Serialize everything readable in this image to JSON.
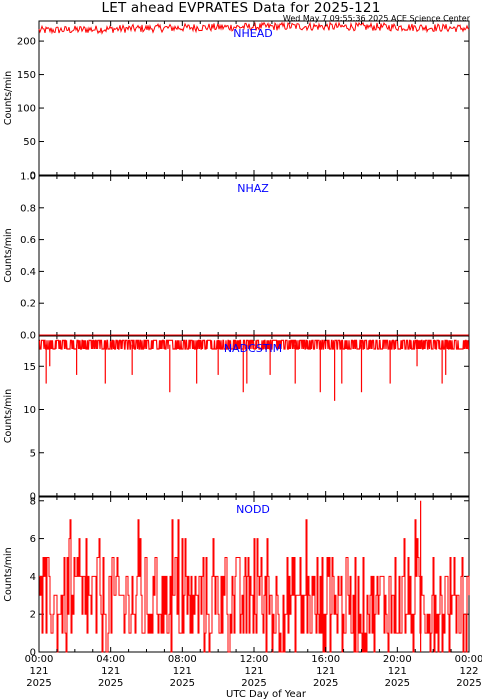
{
  "header": {
    "title": "LET ahead EVPRATES Data for 2025-121",
    "timestamp": "Wed May  7 09:55:36 2025 ACE Science Center"
  },
  "colors": {
    "series": "#ff0000",
    "label": "#0000ff",
    "axes": "#000000"
  },
  "x_axis": {
    "label": "UTC Day of Year",
    "ticks": [
      {
        "time": "00:00",
        "doy": "121",
        "year": "2025"
      },
      {
        "time": "04:00",
        "doy": "121",
        "year": "2025"
      },
      {
        "time": "08:00",
        "doy": "121",
        "year": "2025"
      },
      {
        "time": "12:00",
        "doy": "121",
        "year": "2025"
      },
      {
        "time": "16:00",
        "doy": "121",
        "year": "2025"
      },
      {
        "time": "20:00",
        "doy": "121",
        "year": "2025"
      },
      {
        "time": "00:00",
        "doy": "122",
        "year": "2025"
      }
    ]
  },
  "chart_data": [
    {
      "type": "line",
      "series_label": "NHEAD",
      "ylabel": "Counts/min",
      "ylim": [
        0,
        230
      ],
      "yticks": [
        "0",
        "50",
        "100",
        "150",
        "200"
      ],
      "x_range_hours": [
        0,
        24
      ],
      "baseline": 218,
      "noise": 6,
      "trend": [
        [
          0,
          216
        ],
        [
          8,
          220
        ],
        [
          14,
          222
        ],
        [
          20,
          221
        ],
        [
          24,
          219
        ]
      ]
    },
    {
      "type": "line",
      "series_label": "NHAZ",
      "ylabel": "Counts/min",
      "ylim": [
        0,
        1
      ],
      "yticks": [
        "0.0",
        "0.2",
        "0.4",
        "0.6",
        "0.8",
        "1.0"
      ],
      "x_range_hours": [
        0,
        24
      ],
      "baseline": 0,
      "noise": 0,
      "trend": [
        [
          0,
          0
        ],
        [
          24,
          0
        ]
      ]
    },
    {
      "type": "line",
      "series_label": "NADCSTIM",
      "ylabel": "Counts/min",
      "ylim": [
        0,
        18.5
      ],
      "yticks": [
        "0",
        "5",
        "10",
        "15"
      ],
      "x_range_hours": [
        0,
        24
      ],
      "baseline": 17.5,
      "noise": 0.5,
      "dips": [
        [
          0.4,
          13
        ],
        [
          0.6,
          15
        ],
        [
          2.1,
          14
        ],
        [
          3.7,
          13
        ],
        [
          5.2,
          14
        ],
        [
          7.3,
          12
        ],
        [
          8.8,
          13
        ],
        [
          10.0,
          14
        ],
        [
          11.4,
          12
        ],
        [
          11.6,
          13
        ],
        [
          12.9,
          14
        ],
        [
          14.3,
          13
        ],
        [
          15.7,
          12
        ],
        [
          16.5,
          11
        ],
        [
          16.9,
          13
        ],
        [
          18.0,
          12
        ],
        [
          19.6,
          13
        ],
        [
          21.1,
          15
        ],
        [
          22.5,
          13
        ],
        [
          22.7,
          14
        ]
      ]
    },
    {
      "type": "line",
      "series_label": "NODD",
      "ylabel": "Counts/min",
      "ylim": [
        0,
        8.2
      ],
      "yticks": [
        "0",
        "2",
        "4",
        "6",
        "8"
      ],
      "x_range_hours": [
        0,
        24
      ],
      "baseline": 2.5,
      "noise": 2.5,
      "spikes": [
        [
          21.3,
          8
        ]
      ]
    }
  ]
}
